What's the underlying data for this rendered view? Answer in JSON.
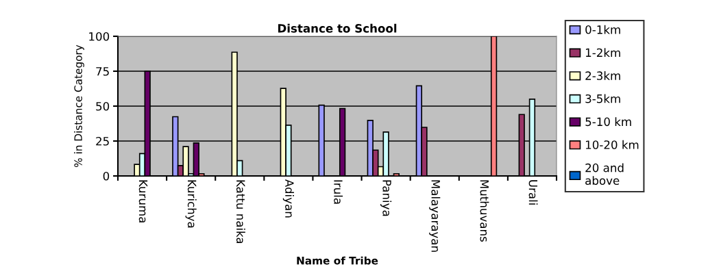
{
  "chart_data": {
    "type": "bar",
    "title": "Distance to School",
    "xlabel": "Name of Tribe",
    "ylabel": "% in Distance Category",
    "categories": [
      "Kuruma",
      "Kurichya",
      "Kattu naika",
      "Adiyan",
      "Irula",
      "Paniya",
      "Malayarayan",
      "Muthuvans",
      "Urali"
    ],
    "series": [
      {
        "name": "0-1km",
        "color": "#9999ff",
        "values": [
          null,
          42.4,
          null,
          null,
          50.7,
          39.8,
          64.5,
          null,
          null
        ]
      },
      {
        "name": "1-2km",
        "color": "#993366",
        "values": [
          null,
          7.4,
          null,
          null,
          null,
          18.5,
          34.8,
          null,
          44
        ]
      },
      {
        "name": "2-3km",
        "color": "#ffffcc",
        "values": [
          8.3,
          21,
          88.6,
          62.7,
          null,
          6.6,
          null,
          null,
          null
        ]
      },
      {
        "name": "3-5km",
        "color": "#ccffff",
        "values": [
          16,
          1.6,
          11,
          36.3,
          null,
          31.4,
          null,
          null,
          55
        ]
      },
      {
        "name": "5-10 km",
        "color": "#660066",
        "values": [
          75,
          23.6,
          null,
          null,
          48.3,
          null,
          null,
          null,
          null
        ]
      },
      {
        "name": "10-20 km",
        "color": "#ff8080",
        "values": [
          null,
          1.6,
          null,
          null,
          null,
          1.6,
          null,
          100,
          null
        ]
      },
      {
        "name": "20 and\nabove",
        "color": "#0066cc",
        "values": [
          null,
          null,
          null,
          null,
          null,
          null,
          null,
          null,
          null
        ]
      }
    ],
    "ylim": [
      0,
      100
    ],
    "yticks": [
      0,
      25,
      50,
      75,
      100
    ],
    "grid": "y",
    "legend": "right"
  }
}
